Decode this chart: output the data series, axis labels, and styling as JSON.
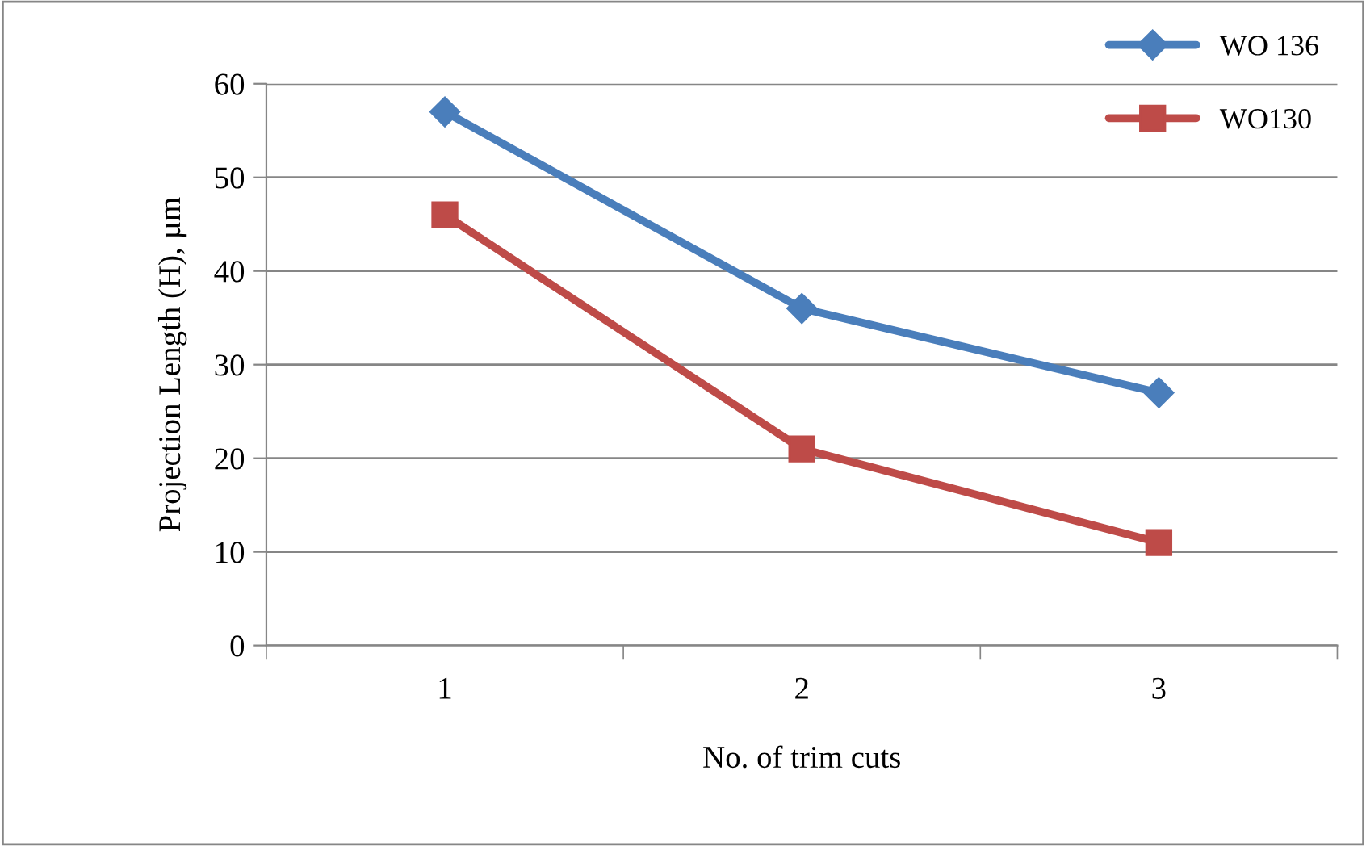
{
  "chart_data": {
    "type": "line",
    "xlabel": "No. of trim cuts",
    "ylabel": "Projection Length (H), µm",
    "categories": [
      "1",
      "2",
      "3"
    ],
    "series": [
      {
        "name": "WO 136",
        "color": "#4a7ebb",
        "values": [
          57,
          36,
          27
        ],
        "marker": "diamond"
      },
      {
        "name": "WO130",
        "color": "#be4b48",
        "values": [
          46,
          21,
          11
        ],
        "marker": "square"
      }
    ],
    "ylim": [
      0,
      60
    ],
    "yticks": [
      0,
      10,
      20,
      30,
      40,
      50,
      60
    ],
    "grid": "y",
    "legend": "top right",
    "line_style": "solid"
  }
}
